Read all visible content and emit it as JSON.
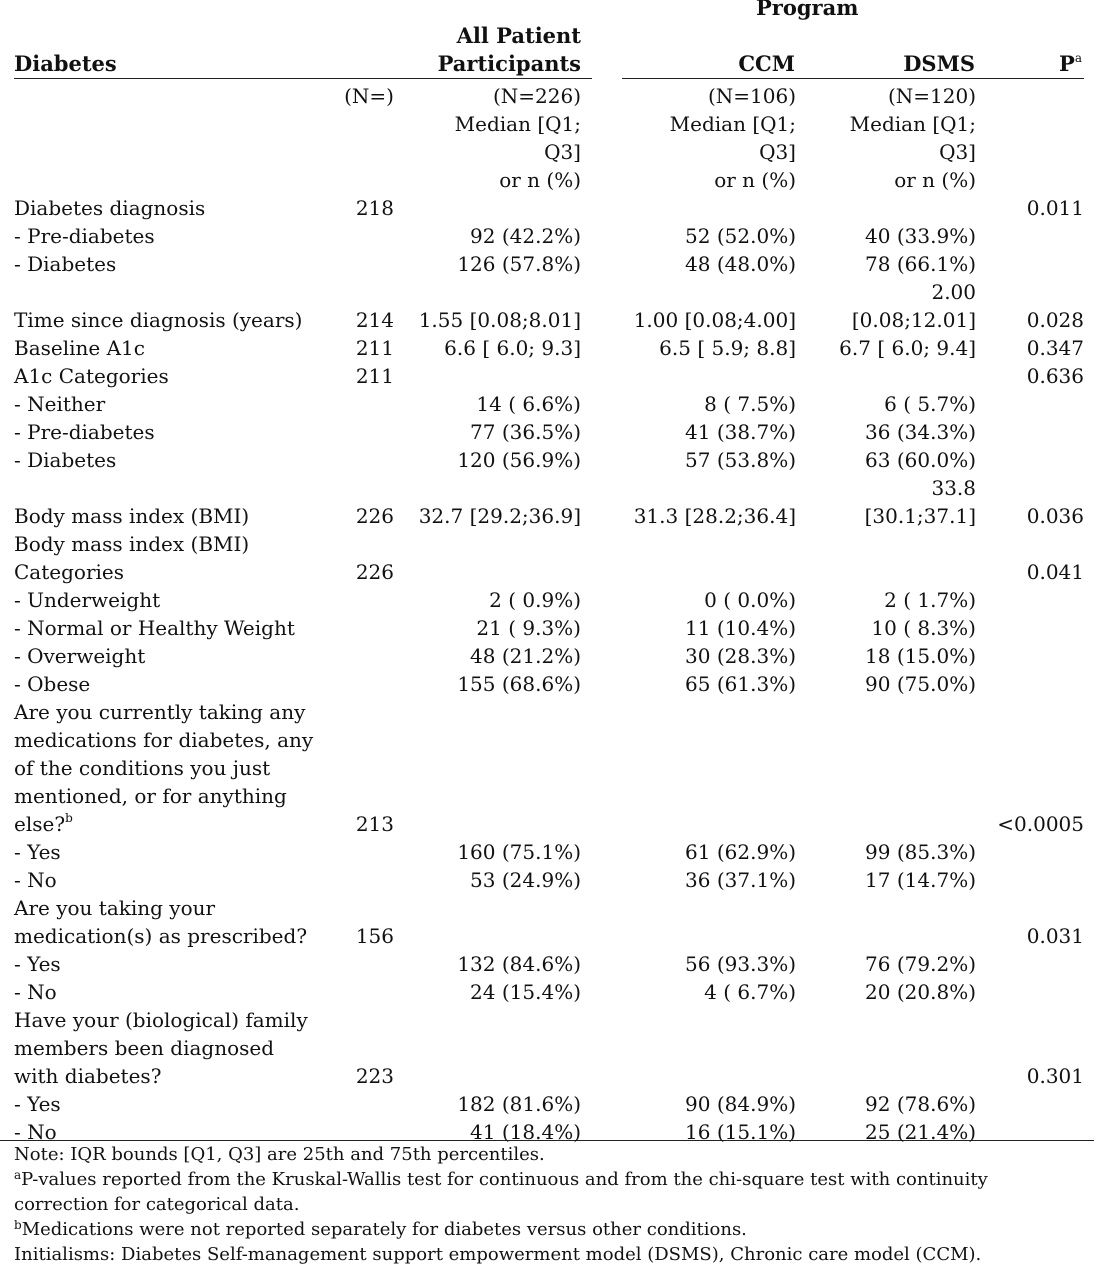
{
  "header": {
    "program": "Program",
    "diabetes": "Diabetes",
    "all_line1": "All Patient",
    "all_line2": "Participants",
    "ccm": "CCM",
    "dsms": "DSMS",
    "p": "P",
    "p_sup": "a"
  },
  "subheader": {
    "n_label": "(N=)",
    "all": [
      "(N=226)",
      "Median [Q1;",
      "Q3]",
      "or n (%)"
    ],
    "ccm": [
      "(N=106)",
      "Median [Q1;",
      "Q3]",
      "or n (%)"
    ],
    "dsms": [
      "(N=120)",
      "Median [Q1;",
      "Q3]",
      "or n (%)"
    ]
  },
  "rows": {
    "diag": {
      "label": "Diabetes diagnosis",
      "n": "218",
      "p": "0.011"
    },
    "diag_pre": {
      "label": "- Pre-diabetes",
      "all": "92 (42.2%)",
      "ccm": "52 (52.0%)",
      "dsms": "40 (33.9%)"
    },
    "diag_dia": {
      "label": "- Diabetes",
      "all": "126 (57.8%)",
      "ccm": "48 (48.0%)",
      "dsms": "78 (66.1%)"
    },
    "time": {
      "label": "Time since diagnosis (years)",
      "n": "214",
      "all": "1.55 [0.08;8.01]",
      "ccm": "1.00 [0.08;4.00]",
      "dsms_1": "2.00",
      "dsms_2": "[0.08;12.01]",
      "p": "0.028"
    },
    "a1c": {
      "label": "Baseline A1c",
      "n": "211",
      "all": "6.6 [ 6.0; 9.3]",
      "ccm": "6.5 [ 5.9; 8.8]",
      "dsms": "6.7 [ 6.0; 9.4]",
      "p": "0.347"
    },
    "a1c_cat": {
      "label": "A1c Categories",
      "n": "211",
      "p": "0.636"
    },
    "a1c_nei": {
      "label": "- Neither",
      "all": "14 ( 6.6%)",
      "ccm": "8 ( 7.5%)",
      "dsms": "6 ( 5.7%)"
    },
    "a1c_pre": {
      "label": "- Pre-diabetes",
      "all": "77 (36.5%)",
      "ccm": "41 (38.7%)",
      "dsms": "36 (34.3%)"
    },
    "a1c_dia": {
      "label": "- Diabetes",
      "all": "120 (56.9%)",
      "ccm": "57 (53.8%)",
      "dsms": "63 (60.0%)"
    },
    "bmi": {
      "label": "Body mass index (BMI)",
      "n": "226",
      "all": "32.7 [29.2;36.9]",
      "ccm": "31.3 [28.2;36.4]",
      "dsms_1": "33.8",
      "dsms_2": "[30.1;37.1]",
      "p": "0.036"
    },
    "bmi_cat": {
      "label_1": "Body mass index (BMI)",
      "label_2": "Categories",
      "n": "226",
      "p": "0.041"
    },
    "bmi_under": {
      "label": "- Underweight",
      "all": "2 ( 0.9%)",
      "ccm": "0 ( 0.0%)",
      "dsms": "2 ( 1.7%)"
    },
    "bmi_norm": {
      "label": "- Normal or Healthy Weight",
      "all": "21 ( 9.3%)",
      "ccm": "11 (10.4%)",
      "dsms": "10 ( 8.3%)"
    },
    "bmi_over": {
      "label": "- Overweight",
      "all": "48 (21.2%)",
      "ccm": "30 (28.3%)",
      "dsms": "18 (15.0%)"
    },
    "bmi_obese": {
      "label": "- Obese",
      "all": "155 (68.6%)",
      "ccm": "65 (61.3%)",
      "dsms": "90 (75.0%)"
    },
    "meds": {
      "label_1": "Are you currently taking any",
      "label_2": "medications for diabetes, any",
      "label_3": "of the conditions you just",
      "label_4": "mentioned, or for anything",
      "label_5": "else?",
      "label_sup": "b",
      "n": "213",
      "p": "<0.0005"
    },
    "meds_yes": {
      "label": "- Yes",
      "all": "160 (75.1%)",
      "ccm": "61 (62.9%)",
      "dsms": "99 (85.3%)"
    },
    "meds_no": {
      "label": "- No",
      "all": "53 (24.9%)",
      "ccm": "36 (37.1%)",
      "dsms": "17 (14.7%)"
    },
    "presc": {
      "label_1": "Are you taking your",
      "label_2": "medication(s) as prescribed?",
      "n": "156",
      "p": "0.031"
    },
    "presc_yes": {
      "label": "- Yes",
      "all": "132 (84.6%)",
      "ccm": "56 (93.3%)",
      "dsms": "76 (79.2%)"
    },
    "presc_no": {
      "label": "- No",
      "all": "24 (15.4%)",
      "ccm": "4 ( 6.7%)",
      "dsms": "20 (20.8%)"
    },
    "fam": {
      "label_1": "Have your (biological) family",
      "label_2": "members been diagnosed",
      "label_3": "with diabetes?",
      "n": "223",
      "p": "0.301"
    },
    "fam_yes": {
      "label": "- Yes",
      "all": "182 (81.6%)",
      "ccm": "90 (84.9%)",
      "dsms": "92 (78.6%)"
    },
    "fam_no": {
      "label": "- No",
      "all": "41 (18.4%)",
      "ccm": "16 (15.1%)",
      "dsms": "25 (21.4%)"
    }
  },
  "notes": {
    "n1": "Note: IQR bounds [Q1, Q3] are 25th and 75th percentiles.",
    "n2_sup": "a",
    "n2": "P-values reported from the Kruskal-Wallis test for continuous and from the chi-square test with continuity correction for categorical data.",
    "n3_sup": "b",
    "n3": "Medications were not reported separately for diabetes versus other conditions.",
    "n4": "Initialisms: Diabetes Self-management support empowerment model (DSMS), Chronic care model (CCM)."
  }
}
